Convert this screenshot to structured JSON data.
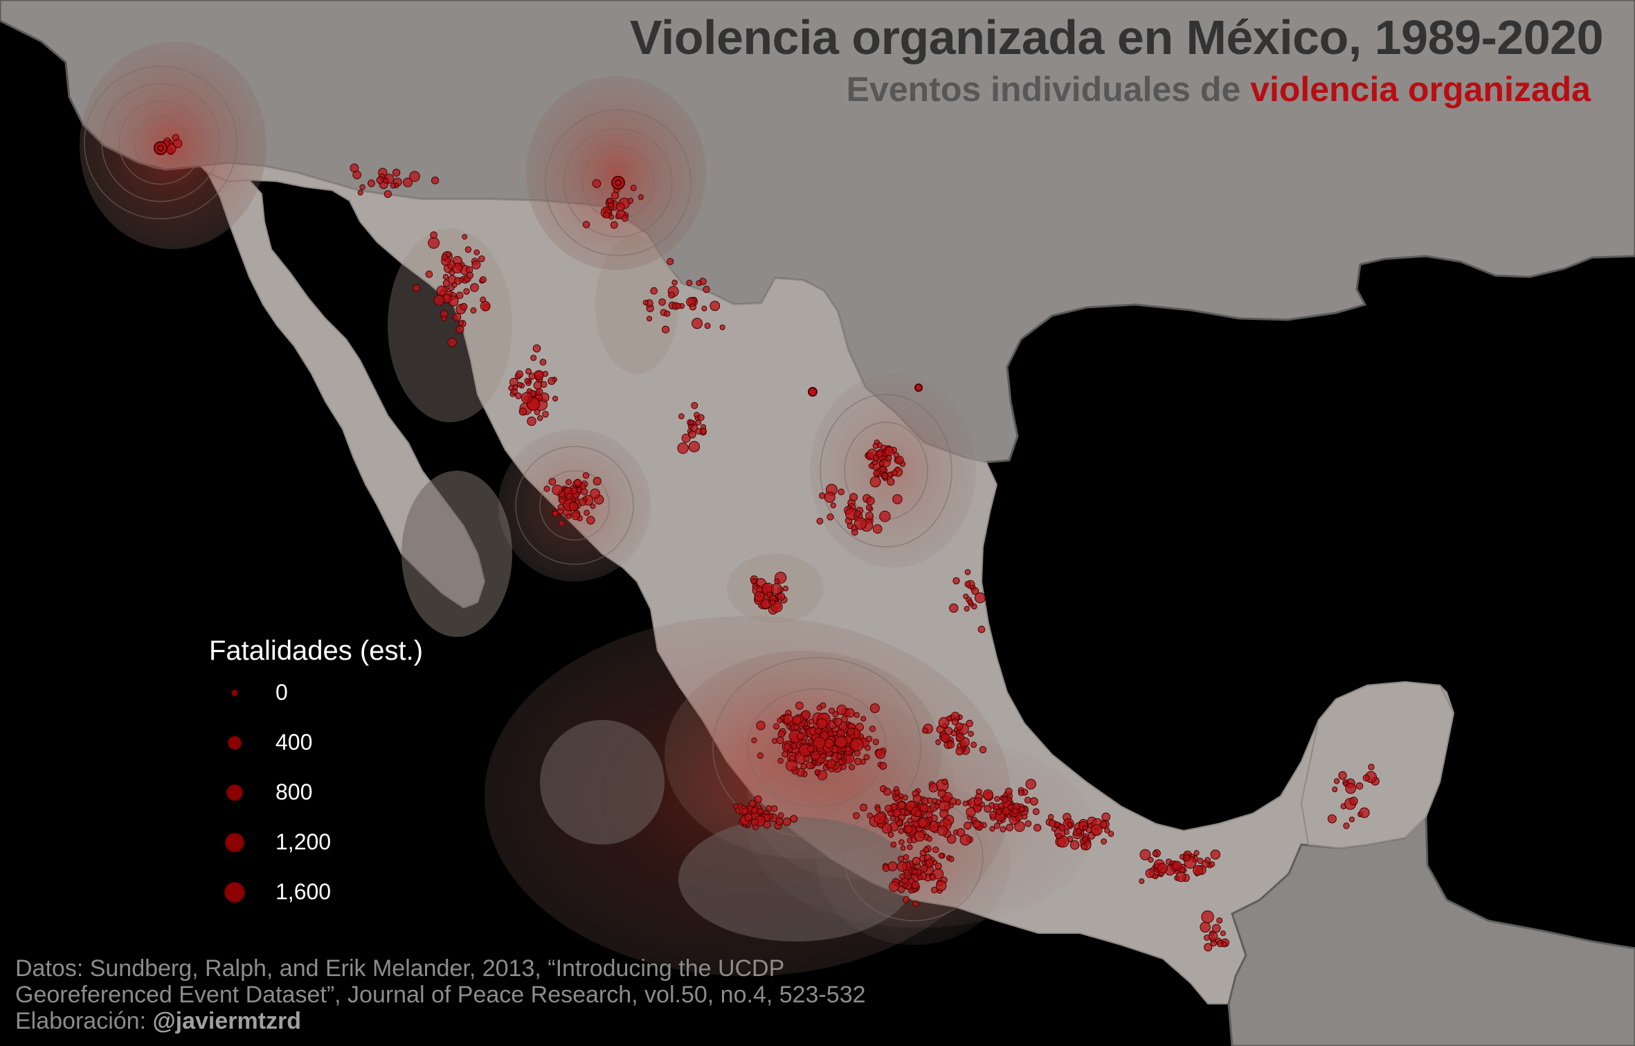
{
  "header": {
    "title": "Violencia organizada en México, 1989-2020",
    "subtitle_prefix": "Eventos individuales de ",
    "subtitle_highlight": "violencia organizada"
  },
  "legend": {
    "title": "Fatalidades (est.)",
    "items": [
      {
        "label": "0",
        "value": 0
      },
      {
        "label": "400",
        "value": 400
      },
      {
        "label": "800",
        "value": 800
      },
      {
        "label": "1,200",
        "value": 1200
      },
      {
        "label": "1,600",
        "value": 1600
      }
    ]
  },
  "caption": {
    "line1": "Datos: Sundberg, Ralph, and Erik Melander, 2013, “Introducing the UCDP",
    "line2": "Georeferenced Event Dataset”, Journal of Peace Research, vol.50, no.4, 523-532",
    "line3_prefix": "Elaboración: ",
    "line3_handle": "@javiermtzrd"
  },
  "colors": {
    "ocean": "#000000",
    "usa": "#8e8b89",
    "mexico": "#aca6a2",
    "central_america": "#8a8785",
    "event": "#b81216",
    "density": "#9a3a30"
  }
}
